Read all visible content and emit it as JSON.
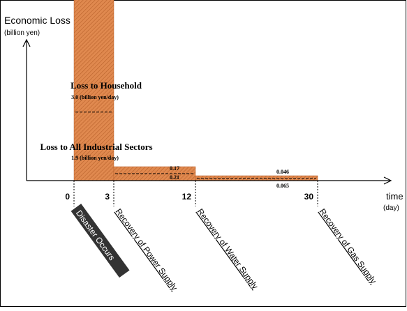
{
  "chart_data": {
    "type": "bar",
    "y_axis_title": "Economic Loss",
    "y_axis_unit": "(billion yen)",
    "x_axis_title": "time",
    "x_axis_unit": "(day)",
    "x_ticks": [
      "0",
      "3",
      "12",
      "30"
    ],
    "segments": [
      {
        "x_start": 0,
        "x_end": 3,
        "household": 3.0,
        "industrial": 1.9
      },
      {
        "x_start": 3,
        "x_end": 12,
        "household": 0.17,
        "industrial": 0.21
      },
      {
        "x_start": 12,
        "x_end": 30,
        "household": 0.046,
        "industrial": 0.065
      }
    ],
    "annotations": {
      "household_title": "Loss to Household",
      "household_value": "3.0 (billion yen/day)",
      "industrial_title": "Loss to All Industrial Sectors",
      "industrial_value": "1.9 (billion yen/day)",
      "seg2_top": "0.17",
      "seg2_bottom": "0.21",
      "seg3_top": "0.046",
      "seg3_bottom": "0.065"
    },
    "events": [
      {
        "label": "Disaster Occurs",
        "day": 0,
        "style": "dark"
      },
      {
        "label": "Recovery of Power Supply",
        "day": 3,
        "style": "plain"
      },
      {
        "label": "Recovery of Water Supply",
        "day": 12,
        "style": "plain"
      },
      {
        "label": "Recovery of Gas Supply",
        "day": 30,
        "style": "plain"
      }
    ],
    "colors": {
      "bar_fill": "#E0894F",
      "bar_hatch": "#B8612A",
      "dark_label": "#333333"
    }
  }
}
